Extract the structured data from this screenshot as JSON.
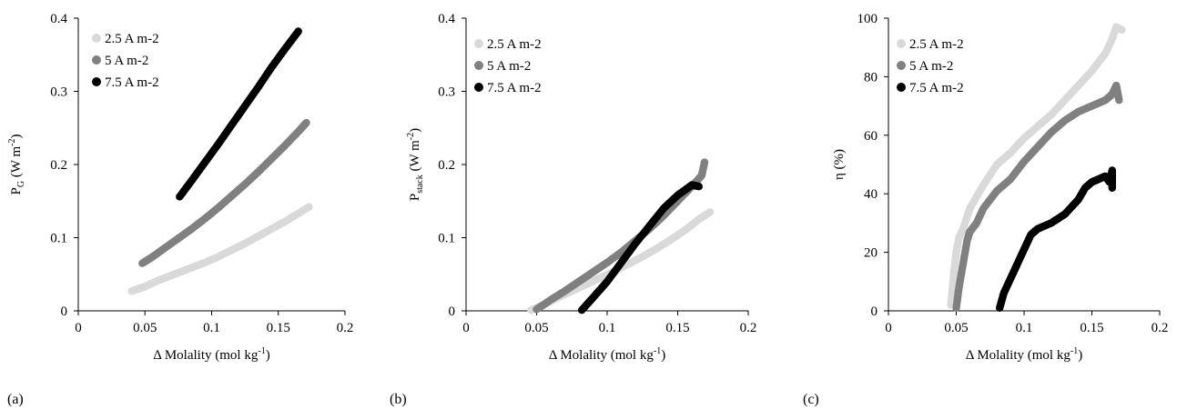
{
  "panels": [
    {
      "label": "(a)"
    },
    {
      "label": "(b)"
    },
    {
      "label": "(c)"
    }
  ],
  "colors": {
    "2.5 A m-2": "#d9d9d9",
    "5 A m-2": "#808080",
    "7.5 A m-2": "#000000"
  },
  "chart_data": [
    {
      "type": "scatter",
      "xlabel": "Δ Molality (mol kg-1)",
      "ylabel": "PG (W m-2)",
      "ylabel_parts": {
        "main": "P",
        "sub": "G",
        "unit_pre": " (W m",
        "sup": "-2",
        "unit_post": ")"
      },
      "xlabel_parts": {
        "main": "Δ Molality (mol kg",
        "sup": "-1",
        "post": ")"
      },
      "xlim": [
        0,
        0.2
      ],
      "ylim": [
        0,
        0.4
      ],
      "xticks": [
        0,
        0.05,
        0.1,
        0.15,
        0.2
      ],
      "xtick_labels": [
        "0",
        "0.05",
        "0.1",
        "0.15",
        "0.2"
      ],
      "yticks": [
        0,
        0.1,
        0.2,
        0.3,
        0.4
      ],
      "ytick_labels": [
        "0",
        "0.1",
        "0.2",
        "0.3",
        "0.4"
      ],
      "grid": false,
      "legend": "top-left",
      "series": [
        {
          "name": "2.5 A m-2",
          "points": [
            [
              0.04,
              0.027
            ],
            [
              0.045,
              0.03
            ],
            [
              0.05,
              0.033
            ],
            [
              0.058,
              0.04
            ],
            [
              0.065,
              0.045
            ],
            [
              0.075,
              0.052
            ],
            [
              0.085,
              0.059
            ],
            [
              0.095,
              0.066
            ],
            [
              0.105,
              0.074
            ],
            [
              0.115,
              0.083
            ],
            [
              0.125,
              0.092
            ],
            [
              0.135,
              0.102
            ],
            [
              0.145,
              0.112
            ],
            [
              0.155,
              0.122
            ],
            [
              0.165,
              0.133
            ],
            [
              0.173,
              0.142
            ]
          ]
        },
        {
          "name": "5 A m-2",
          "points": [
            [
              0.048,
              0.065
            ],
            [
              0.055,
              0.073
            ],
            [
              0.065,
              0.086
            ],
            [
              0.075,
              0.099
            ],
            [
              0.085,
              0.112
            ],
            [
              0.095,
              0.126
            ],
            [
              0.105,
              0.141
            ],
            [
              0.115,
              0.157
            ],
            [
              0.125,
              0.173
            ],
            [
              0.135,
              0.19
            ],
            [
              0.145,
              0.208
            ],
            [
              0.155,
              0.226
            ],
            [
              0.165,
              0.245
            ],
            [
              0.171,
              0.257
            ]
          ]
        },
        {
          "name": "7.5 A m-2",
          "points": [
            [
              0.076,
              0.156
            ],
            [
              0.085,
              0.178
            ],
            [
              0.095,
              0.203
            ],
            [
              0.105,
              0.228
            ],
            [
              0.115,
              0.254
            ],
            [
              0.125,
              0.28
            ],
            [
              0.135,
              0.306
            ],
            [
              0.145,
              0.333
            ],
            [
              0.155,
              0.358
            ],
            [
              0.165,
              0.382
            ]
          ]
        }
      ]
    },
    {
      "type": "scatter",
      "xlabel": "Δ Molality (mol kg-1)",
      "ylabel": "Pstack (W m-2)",
      "ylabel_parts": {
        "main": "P",
        "sub": "stack",
        "unit_pre": " (W m",
        "sup": "-2",
        "unit_post": ")"
      },
      "xlabel_parts": {
        "main": "Δ Molality (mol kg",
        "sup": "-1",
        "post": ")"
      },
      "xlim": [
        0,
        0.2
      ],
      "ylim": [
        0,
        0.4
      ],
      "xticks": [
        0,
        0.05,
        0.1,
        0.15,
        0.2
      ],
      "xtick_labels": [
        "0",
        "0.05",
        "0.1",
        "0.15",
        "0.2"
      ],
      "yticks": [
        0,
        0.1,
        0.2,
        0.3,
        0.4
      ],
      "ytick_labels": [
        "0",
        "0.1",
        "0.2",
        "0.3",
        "0.4"
      ],
      "grid": false,
      "legend": "top-left",
      "series": [
        {
          "name": "2.5 A m-2",
          "points": [
            [
              0.046,
              0.001
            ],
            [
              0.055,
              0.008
            ],
            [
              0.065,
              0.018
            ],
            [
              0.075,
              0.027
            ],
            [
              0.085,
              0.036
            ],
            [
              0.095,
              0.045
            ],
            [
              0.105,
              0.054
            ],
            [
              0.115,
              0.064
            ],
            [
              0.125,
              0.074
            ],
            [
              0.135,
              0.085
            ],
            [
              0.145,
              0.097
            ],
            [
              0.155,
              0.11
            ],
            [
              0.165,
              0.125
            ],
            [
              0.173,
              0.135
            ]
          ]
        },
        {
          "name": "5 A m-2",
          "points": [
            [
              0.05,
              0.002
            ],
            [
              0.06,
              0.015
            ],
            [
              0.07,
              0.027
            ],
            [
              0.08,
              0.04
            ],
            [
              0.09,
              0.053
            ],
            [
              0.1,
              0.066
            ],
            [
              0.11,
              0.08
            ],
            [
              0.12,
              0.096
            ],
            [
              0.13,
              0.112
            ],
            [
              0.14,
              0.13
            ],
            [
              0.15,
              0.15
            ],
            [
              0.16,
              0.17
            ],
            [
              0.167,
              0.185
            ],
            [
              0.169,
              0.203
            ]
          ]
        },
        {
          "name": "7.5 A m-2",
          "points": [
            [
              0.082,
              0.001
            ],
            [
              0.09,
              0.018
            ],
            [
              0.1,
              0.04
            ],
            [
              0.11,
              0.066
            ],
            [
              0.12,
              0.092
            ],
            [
              0.13,
              0.116
            ],
            [
              0.14,
              0.14
            ],
            [
              0.15,
              0.158
            ],
            [
              0.16,
              0.172
            ],
            [
              0.165,
              0.17
            ]
          ]
        }
      ]
    },
    {
      "type": "scatter",
      "xlabel": "Δ Molality (mol kg-1)",
      "ylabel": "η (%)",
      "ylabel_parts": {
        "main": "η (%)",
        "sub": "",
        "unit_pre": "",
        "sup": "",
        "unit_post": ""
      },
      "xlabel_parts": {
        "main": "Δ Molality (mol kg",
        "sup": "-1",
        "post": ")"
      },
      "xlim": [
        0,
        0.2
      ],
      "ylim": [
        0,
        100
      ],
      "xticks": [
        0,
        0.05,
        0.1,
        0.15,
        0.2
      ],
      "xtick_labels": [
        "0",
        "0.05",
        "0.1",
        "0.15",
        "0.2"
      ],
      "yticks": [
        0,
        20,
        40,
        60,
        80,
        100
      ],
      "ytick_labels": [
        "0",
        "20",
        "40",
        "60",
        "80",
        "100"
      ],
      "grid": false,
      "legend": "top-left",
      "series": [
        {
          "name": "2.5 A m-2",
          "points": [
            [
              0.046,
              2
            ],
            [
              0.048,
              12
            ],
            [
              0.05,
              20
            ],
            [
              0.052,
              25
            ],
            [
              0.055,
              28
            ],
            [
              0.06,
              35
            ],
            [
              0.07,
              43
            ],
            [
              0.08,
              50
            ],
            [
              0.09,
              54
            ],
            [
              0.1,
              59
            ],
            [
              0.11,
              63
            ],
            [
              0.12,
              67
            ],
            [
              0.13,
              72
            ],
            [
              0.14,
              77
            ],
            [
              0.15,
              82
            ],
            [
              0.16,
              88
            ],
            [
              0.165,
              93
            ],
            [
              0.168,
              97
            ],
            [
              0.172,
              96
            ]
          ]
        },
        {
          "name": "5 A m-2",
          "points": [
            [
              0.05,
              1
            ],
            [
              0.052,
              8
            ],
            [
              0.055,
              16
            ],
            [
              0.058,
              24
            ],
            [
              0.06,
              27
            ],
            [
              0.065,
              30
            ],
            [
              0.07,
              35
            ],
            [
              0.08,
              41
            ],
            [
              0.09,
              45
            ],
            [
              0.1,
              51
            ],
            [
              0.11,
              56
            ],
            [
              0.12,
              61
            ],
            [
              0.13,
              65
            ],
            [
              0.14,
              68
            ],
            [
              0.15,
              70
            ],
            [
              0.16,
              72
            ],
            [
              0.165,
              74
            ],
            [
              0.168,
              77
            ],
            [
              0.17,
              72
            ]
          ]
        },
        {
          "name": "7.5 A m-2",
          "points": [
            [
              0.082,
              1
            ],
            [
              0.085,
              6
            ],
            [
              0.09,
              11
            ],
            [
              0.095,
              16
            ],
            [
              0.1,
              21
            ],
            [
              0.105,
              26
            ],
            [
              0.11,
              28
            ],
            [
              0.12,
              30
            ],
            [
              0.13,
              33
            ],
            [
              0.14,
              38
            ],
            [
              0.145,
              42
            ],
            [
              0.15,
              44
            ],
            [
              0.155,
              45
            ],
            [
              0.16,
              46
            ],
            [
              0.163,
              44
            ],
            [
              0.165,
              48
            ],
            [
              0.165,
              42
            ]
          ]
        }
      ]
    }
  ]
}
